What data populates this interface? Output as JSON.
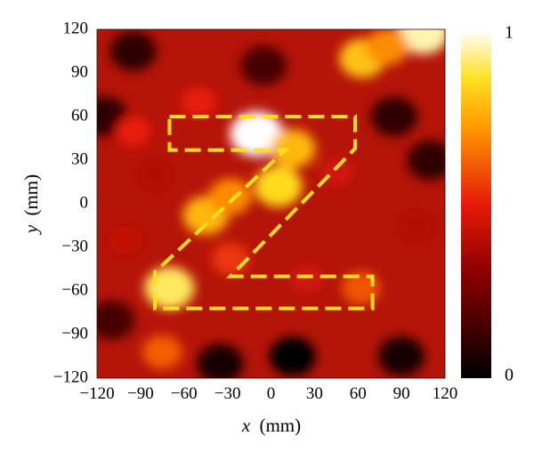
{
  "chart_data": {
    "type": "heatmap",
    "title": "",
    "xlabel_var": "x",
    "xlabel_unit": "(mm)",
    "ylabel_var": "y",
    "ylabel_unit": "(mm)",
    "xlim": [
      -120,
      120
    ],
    "ylim": [
      -120,
      120
    ],
    "x_ticks": [
      "−120",
      "−90",
      "−60",
      "−30",
      "0",
      "30",
      "60",
      "90",
      "120"
    ],
    "y_ticks": [
      "120",
      "90",
      "60",
      "30",
      "0",
      "−30",
      "−60",
      "−90",
      "−120"
    ],
    "colorbar": {
      "max_label": "1",
      "min_label": "0",
      "range": [
        0,
        1
      ]
    },
    "hotspots": [
      {
        "x": -10,
        "y": 48,
        "value": 1.0
      },
      {
        "x": 15,
        "y": 38,
        "value": 0.78
      },
      {
        "x": 5,
        "y": 12,
        "value": 0.85
      },
      {
        "x": -45,
        "y": -8,
        "value": 0.78
      },
      {
        "x": -28,
        "y": 5,
        "value": 0.7
      },
      {
        "x": -70,
        "y": -58,
        "value": 0.9
      },
      {
        "x": -28,
        "y": -38,
        "value": 0.55
      },
      {
        "x": 62,
        "y": -58,
        "value": 0.6
      },
      {
        "x": 25,
        "y": -52,
        "value": 0.45
      },
      {
        "x": 63,
        "y": 100,
        "value": 0.8
      },
      {
        "x": 105,
        "y": 118,
        "value": 0.95
      },
      {
        "x": 80,
        "y": 108,
        "value": 0.7
      },
      {
        "x": -50,
        "y": 70,
        "value": 0.5
      },
      {
        "x": -95,
        "y": 50,
        "value": 0.5
      },
      {
        "x": -75,
        "y": -102,
        "value": 0.62
      },
      {
        "x": 45,
        "y": 22,
        "value": 0.45
      },
      {
        "x": -80,
        "y": 20,
        "value": 0.38
      },
      {
        "x": 100,
        "y": -15,
        "value": 0.38
      },
      {
        "x": -100,
        "y": -25,
        "value": 0.42
      }
    ],
    "coldspots": [
      {
        "x": 15,
        "y": -105,
        "value": 0.0
      },
      {
        "x": -35,
        "y": -110,
        "value": 0.05
      },
      {
        "x": -115,
        "y": 60,
        "value": 0.1
      },
      {
        "x": 110,
        "y": 30,
        "value": 0.1
      },
      {
        "x": 90,
        "y": -105,
        "value": 0.05
      },
      {
        "x": -5,
        "y": 95,
        "value": 0.15
      },
      {
        "x": 85,
        "y": 60,
        "value": 0.1
      },
      {
        "x": -95,
        "y": 105,
        "value": 0.1
      },
      {
        "x": -110,
        "y": -80,
        "value": 0.15
      }
    ],
    "outline_polygon": [
      [
        -70,
        60
      ],
      [
        58,
        60
      ],
      [
        58,
        38
      ],
      [
        -28,
        -50
      ],
      [
        70,
        -50
      ],
      [
        70,
        -72
      ],
      [
        -80,
        -72
      ],
      [
        -80,
        -47
      ],
      [
        10,
        37
      ],
      [
        -70,
        37
      ]
    ],
    "outline_style": "dashed",
    "outline_color": "#ffe119"
  }
}
